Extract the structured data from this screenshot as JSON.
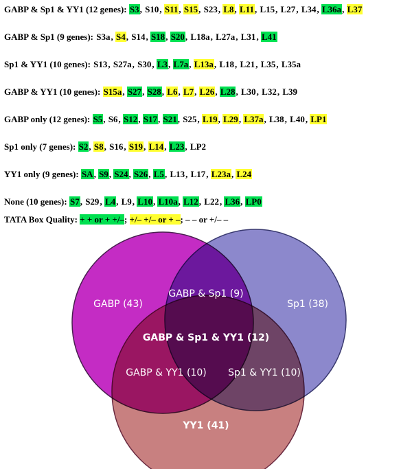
{
  "separator": ", ",
  "groups": [
    {
      "label": "GABP & Sp1 & YY1 (12 genes):",
      "genes": [
        {
          "name": "S3",
          "color": "#00e050"
        },
        {
          "name": "S10"
        },
        {
          "name": "S11",
          "color": "#ffff30"
        },
        {
          "name": "S15",
          "color": "#ffff30"
        },
        {
          "name": "S23"
        },
        {
          "name": "L8",
          "color": "#ffff30"
        },
        {
          "name": "L11",
          "color": "#ffff30"
        },
        {
          "name": "L15"
        },
        {
          "name": "L27"
        },
        {
          "name": "L34"
        },
        {
          "name": "L36a",
          "color": "#00e050"
        },
        {
          "name": "L37",
          "color": "#ffff30"
        }
      ]
    },
    {
      "label": "GABP & Sp1 (9 genes):",
      "genes": [
        {
          "name": "S3a"
        },
        {
          "name": "S4",
          "color": "#ffff30"
        },
        {
          "name": "S14"
        },
        {
          "name": "S18",
          "color": "#00e050"
        },
        {
          "name": "S20",
          "color": "#00e050"
        },
        {
          "name": "L18a"
        },
        {
          "name": "L27a"
        },
        {
          "name": "L31"
        },
        {
          "name": "L41",
          "color": "#00e050"
        }
      ]
    },
    {
      "label": "Sp1 & YY1 (10 genes):",
      "genes": [
        {
          "name": "S13"
        },
        {
          "name": "S27a"
        },
        {
          "name": "S30"
        },
        {
          "name": "L3",
          "color": "#00e050"
        },
        {
          "name": "L7a",
          "color": "#00e050"
        },
        {
          "name": "L13a",
          "color": "#ffff30"
        },
        {
          "name": "L18"
        },
        {
          "name": "L21"
        },
        {
          "name": "L35"
        },
        {
          "name": "L35a"
        }
      ]
    },
    {
      "label": "GABP & YY1 (10 genes):",
      "genes": [
        {
          "name": "S15a",
          "color": "#ffff30"
        },
        {
          "name": "S27",
          "color": "#00e050"
        },
        {
          "name": "S28",
          "color": "#00e050"
        },
        {
          "name": "L6",
          "color": "#ffff30"
        },
        {
          "name": "L7",
          "color": "#ffff30"
        },
        {
          "name": "L26",
          "color": "#ffff30"
        },
        {
          "name": "L28",
          "color": "#00e050"
        },
        {
          "name": "L30"
        },
        {
          "name": "L32"
        },
        {
          "name": "L39"
        }
      ]
    },
    {
      "label": "GABP only (12 genes):",
      "genes": [
        {
          "name": "S5",
          "color": "#00e050"
        },
        {
          "name": "S6"
        },
        {
          "name": "S12",
          "color": "#00e050"
        },
        {
          "name": "S17",
          "color": "#00e050"
        },
        {
          "name": "S21",
          "color": "#00e050"
        },
        {
          "name": "S25"
        },
        {
          "name": "L19",
          "color": "#ffff30"
        },
        {
          "name": "L29",
          "color": "#ffff30"
        },
        {
          "name": "L37a",
          "color": "#ffff30"
        },
        {
          "name": "L38"
        },
        {
          "name": "L40"
        },
        {
          "name": "LP1",
          "color": "#ffff30"
        }
      ]
    },
    {
      "label": "Sp1 only (7 genes):",
      "genes": [
        {
          "name": "S2",
          "color": "#00e050"
        },
        {
          "name": "S8",
          "color": "#ffff30"
        },
        {
          "name": "S16"
        },
        {
          "name": "S19",
          "color": "#ffff30"
        },
        {
          "name": "L14",
          "color": "#ffff30"
        },
        {
          "name": "L23",
          "color": "#00e050"
        },
        {
          "name": "LP2"
        }
      ]
    },
    {
      "label": "YY1 only (9 genes):",
      "genes": [
        {
          "name": "SA",
          "color": "#00e050"
        },
        {
          "name": "S9",
          "color": "#00e050"
        },
        {
          "name": "S24",
          "color": "#00e050"
        },
        {
          "name": "S26",
          "color": "#00e050"
        },
        {
          "name": "L5",
          "color": "#00e050"
        },
        {
          "name": "L13"
        },
        {
          "name": "L17"
        },
        {
          "name": "L23a",
          "color": "#ffff30"
        },
        {
          "name": "L24",
          "color": "#ffff30"
        }
      ]
    },
    {
      "label": "None (10 genes):",
      "genes": [
        {
          "name": "S7",
          "color": "#00e050"
        },
        {
          "name": "S29"
        },
        {
          "name": "L4",
          "color": "#00e050"
        },
        {
          "name": "L9"
        },
        {
          "name": "L10",
          "color": "#00e050"
        },
        {
          "name": "L10a",
          "color": "#00e050"
        },
        {
          "name": "L12",
          "color": "#00e050"
        },
        {
          "name": "L22"
        },
        {
          "name": "L36",
          "color": "#00e050"
        },
        {
          "name": "LP0",
          "color": "#00e050"
        }
      ]
    }
  ],
  "tata": {
    "label": "TATA Box Quality:",
    "separator": "; ",
    "levels": [
      {
        "text": "+ + or + +/–",
        "color": "#00e050"
      },
      {
        "text": "+/– +/– or + –",
        "color": "#ffff30"
      },
      {
        "text": "– – or +/– –"
      }
    ]
  },
  "venn": {
    "gabp": "GABP (43)",
    "sp1": "Sp1 (38)",
    "yy1": "YY1 (41)",
    "gabp_sp1": "GABP & Sp1 (9)",
    "all": "GABP & Sp1 & YY1 (12)",
    "gabp_yy1": "GABP & YY1 (10)",
    "sp1_yy1": "Sp1 & YY1 (10)"
  }
}
